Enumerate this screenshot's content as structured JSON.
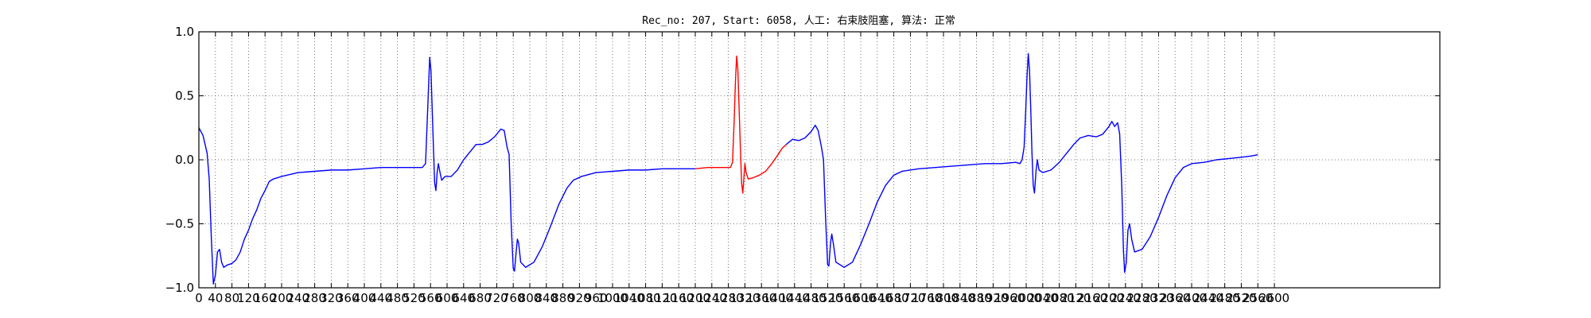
{
  "chart_data": {
    "type": "line",
    "title": "Rec_no: 207, Start: 6058, 人工: 右束肢阻塞, 算法: 正常",
    "xlabel": "",
    "ylabel": "",
    "xlim": [
      0,
      3000
    ],
    "ylim": [
      -1.0,
      1.0
    ],
    "xticks": [
      0,
      40,
      80,
      120,
      160,
      200,
      240,
      280,
      320,
      360,
      400,
      440,
      480,
      520,
      560,
      600,
      640,
      680,
      720,
      760,
      800,
      840,
      880,
      920,
      960,
      1000,
      1040,
      1080,
      1120,
      1160,
      1200,
      1240,
      1280,
      1320,
      1360,
      1400,
      1440,
      1480,
      1520,
      1560,
      1600,
      1640,
      1680,
      1720,
      1760,
      1800,
      1840,
      1880,
      1920,
      1960,
      2000,
      2040,
      2080,
      2120,
      2160,
      2200,
      2240,
      2280,
      2320,
      2360,
      2400,
      2440,
      2480,
      2520,
      2560,
      2600
    ],
    "yticks": [
      1.0,
      0.5,
      0.0,
      -0.5,
      -1.0
    ],
    "ytick_labels": [
      "1.0",
      "0.5",
      "0.0",
      "−0.5",
      "−1.0"
    ],
    "grid": true,
    "colors": {
      "series": "#0000ff",
      "highlight": "#ff0000",
      "grid": "#555555",
      "axis": "#000000"
    },
    "highlight_range": [
      1200,
      1420
    ],
    "series": [
      {
        "color": "#0000ff",
        "points": [
          [
            0,
            0.25
          ],
          [
            10,
            0.19
          ],
          [
            20,
            0.05
          ],
          [
            25,
            -0.15
          ],
          [
            30,
            -0.6
          ],
          [
            35,
            -0.97
          ],
          [
            40,
            -0.9
          ],
          [
            45,
            -0.72
          ],
          [
            50,
            -0.7
          ],
          [
            55,
            -0.8
          ],
          [
            60,
            -0.84
          ],
          [
            70,
            -0.82
          ],
          [
            80,
            -0.81
          ],
          [
            90,
            -0.78
          ],
          [
            100,
            -0.72
          ],
          [
            110,
            -0.62
          ],
          [
            120,
            -0.55
          ],
          [
            130,
            -0.46
          ],
          [
            140,
            -0.39
          ],
          [
            150,
            -0.3
          ],
          [
            160,
            -0.24
          ],
          [
            170,
            -0.17
          ],
          [
            180,
            -0.15
          ],
          [
            200,
            -0.13
          ],
          [
            240,
            -0.1
          ],
          [
            280,
            -0.09
          ],
          [
            320,
            -0.08
          ],
          [
            360,
            -0.08
          ],
          [
            400,
            -0.07
          ],
          [
            440,
            -0.06
          ],
          [
            480,
            -0.06
          ],
          [
            510,
            -0.06
          ],
          [
            540,
            -0.06
          ],
          [
            548,
            -0.03
          ],
          [
            552,
            0.3
          ],
          [
            555,
            0.55
          ],
          [
            558,
            0.8
          ],
          [
            561,
            0.7
          ],
          [
            564,
            0.4
          ],
          [
            567,
            0.1
          ],
          [
            570,
            -0.18
          ],
          [
            573,
            -0.24
          ],
          [
            576,
            -0.1
          ],
          [
            579,
            -0.03
          ],
          [
            583,
            -0.1
          ],
          [
            587,
            -0.16
          ],
          [
            595,
            -0.13
          ],
          [
            610,
            -0.13
          ],
          [
            625,
            -0.08
          ],
          [
            640,
            0.0
          ],
          [
            655,
            0.06
          ],
          [
            670,
            0.12
          ],
          [
            685,
            0.12
          ],
          [
            700,
            0.14
          ],
          [
            715,
            0.18
          ],
          [
            730,
            0.24
          ],
          [
            738,
            0.23
          ],
          [
            745,
            0.1
          ],
          [
            750,
            0.04
          ],
          [
            755,
            -0.5
          ],
          [
            760,
            -0.85
          ],
          [
            763,
            -0.87
          ],
          [
            767,
            -0.72
          ],
          [
            770,
            -0.62
          ],
          [
            773,
            -0.65
          ],
          [
            778,
            -0.8
          ],
          [
            790,
            -0.84
          ],
          [
            810,
            -0.8
          ],
          [
            830,
            -0.68
          ],
          [
            850,
            -0.52
          ],
          [
            870,
            -0.35
          ],
          [
            890,
            -0.22
          ],
          [
            905,
            -0.16
          ],
          [
            925,
            -0.13
          ],
          [
            960,
            -0.1
          ],
          [
            1000,
            -0.09
          ],
          [
            1040,
            -0.08
          ],
          [
            1080,
            -0.08
          ],
          [
            1120,
            -0.07
          ],
          [
            1160,
            -0.07
          ],
          [
            1200,
            -0.07
          ]
        ]
      },
      {
        "color": "#ff0000",
        "points": [
          [
            1200,
            -0.07
          ],
          [
            1230,
            -0.06
          ],
          [
            1260,
            -0.06
          ],
          [
            1285,
            -0.06
          ],
          [
            1290,
            -0.02
          ],
          [
            1294,
            0.3
          ],
          [
            1297,
            0.6
          ],
          [
            1300,
            0.81
          ],
          [
            1303,
            0.7
          ],
          [
            1306,
            0.4
          ],
          [
            1309,
            0.1
          ],
          [
            1312,
            -0.18
          ],
          [
            1315,
            -0.26
          ],
          [
            1318,
            -0.12
          ],
          [
            1320,
            -0.03
          ],
          [
            1323,
            -0.1
          ],
          [
            1328,
            -0.15
          ],
          [
            1340,
            -0.14
          ],
          [
            1355,
            -0.12
          ],
          [
            1370,
            -0.09
          ],
          [
            1385,
            -0.03
          ],
          [
            1400,
            0.04
          ],
          [
            1410,
            0.09
          ],
          [
            1420,
            0.12
          ]
        ]
      },
      {
        "color": "#0000ff",
        "points": [
          [
            1420,
            0.12
          ],
          [
            1435,
            0.16
          ],
          [
            1450,
            0.15
          ],
          [
            1465,
            0.17
          ],
          [
            1480,
            0.22
          ],
          [
            1490,
            0.27
          ],
          [
            1497,
            0.23
          ],
          [
            1505,
            0.1
          ],
          [
            1510,
            0.0
          ],
          [
            1515,
            -0.45
          ],
          [
            1520,
            -0.82
          ],
          [
            1523,
            -0.83
          ],
          [
            1527,
            -0.65
          ],
          [
            1530,
            -0.58
          ],
          [
            1534,
            -0.66
          ],
          [
            1540,
            -0.8
          ],
          [
            1560,
            -0.84
          ],
          [
            1580,
            -0.8
          ],
          [
            1600,
            -0.66
          ],
          [
            1620,
            -0.5
          ],
          [
            1640,
            -0.33
          ],
          [
            1660,
            -0.2
          ],
          [
            1680,
            -0.12
          ],
          [
            1700,
            -0.09
          ],
          [
            1740,
            -0.07
          ],
          [
            1780,
            -0.06
          ],
          [
            1820,
            -0.05
          ],
          [
            1860,
            -0.04
          ],
          [
            1900,
            -0.03
          ],
          [
            1940,
            -0.03
          ],
          [
            1975,
            -0.02
          ],
          [
            1985,
            -0.03
          ],
          [
            1990,
            0.0
          ],
          [
            1995,
            0.1
          ],
          [
            1999,
            0.4
          ],
          [
            2002,
            0.65
          ],
          [
            2005,
            0.83
          ],
          [
            2008,
            0.7
          ],
          [
            2011,
            0.4
          ],
          [
            2014,
            0.05
          ],
          [
            2017,
            -0.2
          ],
          [
            2020,
            -0.26
          ],
          [
            2024,
            -0.08
          ],
          [
            2027,
            0.0
          ],
          [
            2031,
            -0.08
          ],
          [
            2040,
            -0.1
          ],
          [
            2060,
            -0.08
          ],
          [
            2080,
            -0.02
          ],
          [
            2100,
            0.06
          ],
          [
            2115,
            0.12
          ],
          [
            2130,
            0.17
          ],
          [
            2150,
            0.19
          ],
          [
            2170,
            0.18
          ],
          [
            2185,
            0.2
          ],
          [
            2200,
            0.26
          ],
          [
            2207,
            0.3
          ],
          [
            2214,
            0.26
          ],
          [
            2221,
            0.29
          ],
          [
            2226,
            0.2
          ],
          [
            2231,
            -0.2
          ],
          [
            2235,
            -0.7
          ],
          [
            2238,
            -0.88
          ],
          [
            2242,
            -0.8
          ],
          [
            2246,
            -0.55
          ],
          [
            2250,
            -0.5
          ],
          [
            2255,
            -0.62
          ],
          [
            2262,
            -0.72
          ],
          [
            2280,
            -0.7
          ],
          [
            2300,
            -0.6
          ],
          [
            2320,
            -0.45
          ],
          [
            2340,
            -0.28
          ],
          [
            2360,
            -0.14
          ],
          [
            2380,
            -0.06
          ],
          [
            2400,
            -0.03
          ],
          [
            2430,
            -0.02
          ],
          [
            2460,
            0.0
          ],
          [
            2490,
            0.01
          ],
          [
            2520,
            0.02
          ],
          [
            2545,
            0.03
          ],
          [
            2560,
            0.04
          ]
        ]
      }
    ]
  }
}
